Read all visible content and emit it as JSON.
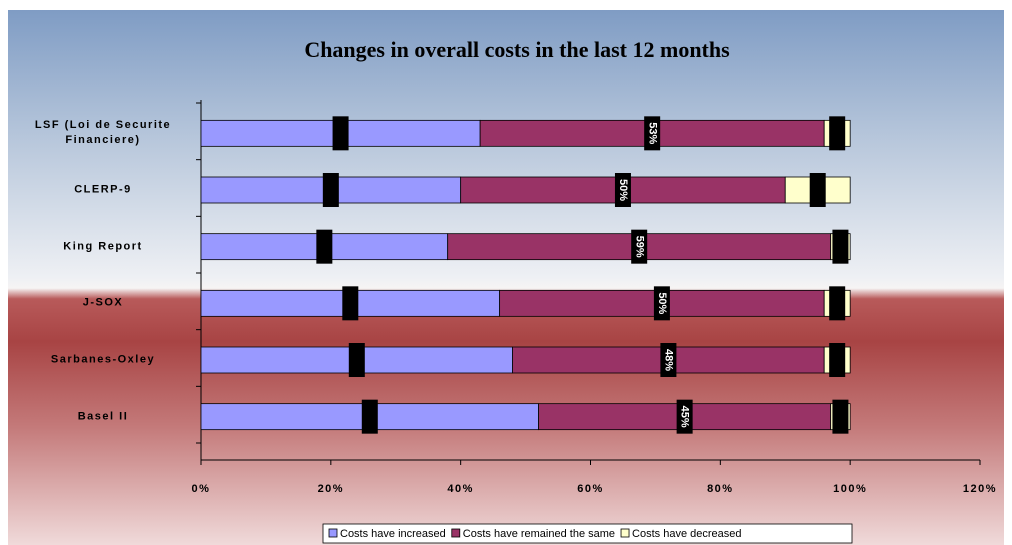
{
  "chart_data": {
    "type": "bar",
    "orientation": "horizontal",
    "stacked": true,
    "title": "Changes in overall costs in the last 12 months",
    "categories": [
      "LSF (Loi de Securite Financiere)",
      "CLERP-9",
      "King Report",
      "J-SOX",
      "Sarbanes-Oxley",
      "Basel II"
    ],
    "series": [
      {
        "name": "Costs have increased",
        "color": "#9999ff",
        "values": [
          43,
          40,
          38,
          46,
          48,
          52
        ]
      },
      {
        "name": "Costs have remained the same",
        "color": "#993366",
        "values": [
          53,
          50,
          59,
          50,
          48,
          45
        ],
        "value_labels": [
          "53%",
          "50%",
          "59%",
          "50%",
          "48%",
          "45%"
        ]
      },
      {
        "name": "Costs have decreased",
        "color": "#ffffcc",
        "values": [
          4,
          10,
          3,
          4,
          4,
          3
        ]
      }
    ],
    "xlim": [
      0,
      120
    ],
    "xticks": [
      {
        "value": 0,
        "label": "0%"
      },
      {
        "value": 20,
        "label": "20%"
      },
      {
        "value": 40,
        "label": "40%"
      },
      {
        "value": 60,
        "label": "60%"
      },
      {
        "value": 80,
        "label": "80%"
      },
      {
        "value": 100,
        "label": "100%"
      },
      {
        "value": 120,
        "label": "120%"
      }
    ],
    "legend": "bottom"
  }
}
